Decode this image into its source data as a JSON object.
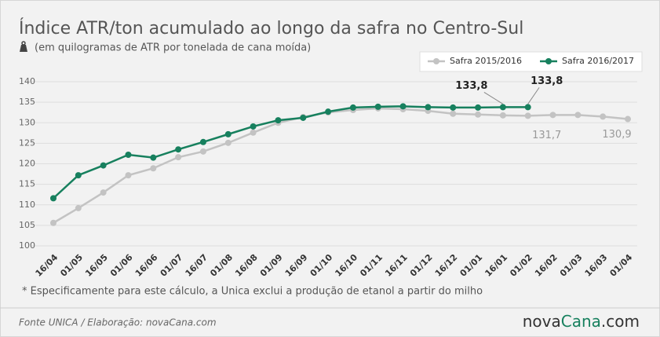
{
  "chart_data": {
    "type": "line",
    "title": "Índice ATR/ton acumulado ao longo da safra no Centro-Sul",
    "subtitle": "(em quilogramas de ATR por tonelada de cana moída)",
    "categories": [
      "16/04",
      "01/05",
      "16/05",
      "01/06",
      "16/06",
      "01/07",
      "16/07",
      "01/08",
      "16/08",
      "01/09",
      "16/09",
      "01/10",
      "16/10",
      "01/11",
      "16/11",
      "01/12",
      "16/12",
      "01/01",
      "16/01",
      "01/02",
      "16/02",
      "01/03",
      "16/03",
      "01/04"
    ],
    "series": [
      {
        "name": "Safra 2015/2016",
        "color": "#c3c3c3",
        "values": [
          105.6,
          109.2,
          113.0,
          117.2,
          118.9,
          121.6,
          123.0,
          125.1,
          127.6,
          130.0,
          131.4,
          132.5,
          133.1,
          133.5,
          133.3,
          132.9,
          132.2,
          132.0,
          131.8,
          131.7,
          131.9,
          131.9,
          131.5,
          130.9
        ],
        "value_labels": [
          null,
          null,
          null,
          null,
          null,
          null,
          null,
          null,
          null,
          null,
          null,
          null,
          null,
          null,
          null,
          null,
          null,
          null,
          null,
          "131,7",
          null,
          null,
          null,
          "130,9"
        ]
      },
      {
        "name": "Safra 2016/2017",
        "color": "#17805e",
        "values": [
          111.6,
          117.2,
          119.6,
          122.2,
          121.5,
          123.5,
          125.3,
          127.2,
          129.1,
          130.6,
          131.2,
          132.7,
          133.7,
          133.9,
          134.0,
          133.8,
          133.7,
          133.7,
          133.8,
          133.8,
          null,
          null,
          null,
          null
        ],
        "value_labels": [
          null,
          null,
          null,
          null,
          null,
          null,
          null,
          null,
          null,
          null,
          null,
          null,
          null,
          null,
          null,
          null,
          null,
          null,
          "133,8",
          "133,8",
          null,
          null,
          null,
          null
        ]
      }
    ],
    "ylim": [
      100,
      140
    ],
    "yticks": [
      100,
      105,
      110,
      115,
      120,
      125,
      130,
      135,
      140
    ],
    "grid": true,
    "legend": "top-right",
    "footnote": "* Especificamente para este cálculo, a Unica exclui a produção de etanol a partir do milho",
    "source": "Fonte UNICA / Elaboração: novaCana.com",
    "logo": [
      "nova",
      "Cana",
      ".com"
    ]
  }
}
